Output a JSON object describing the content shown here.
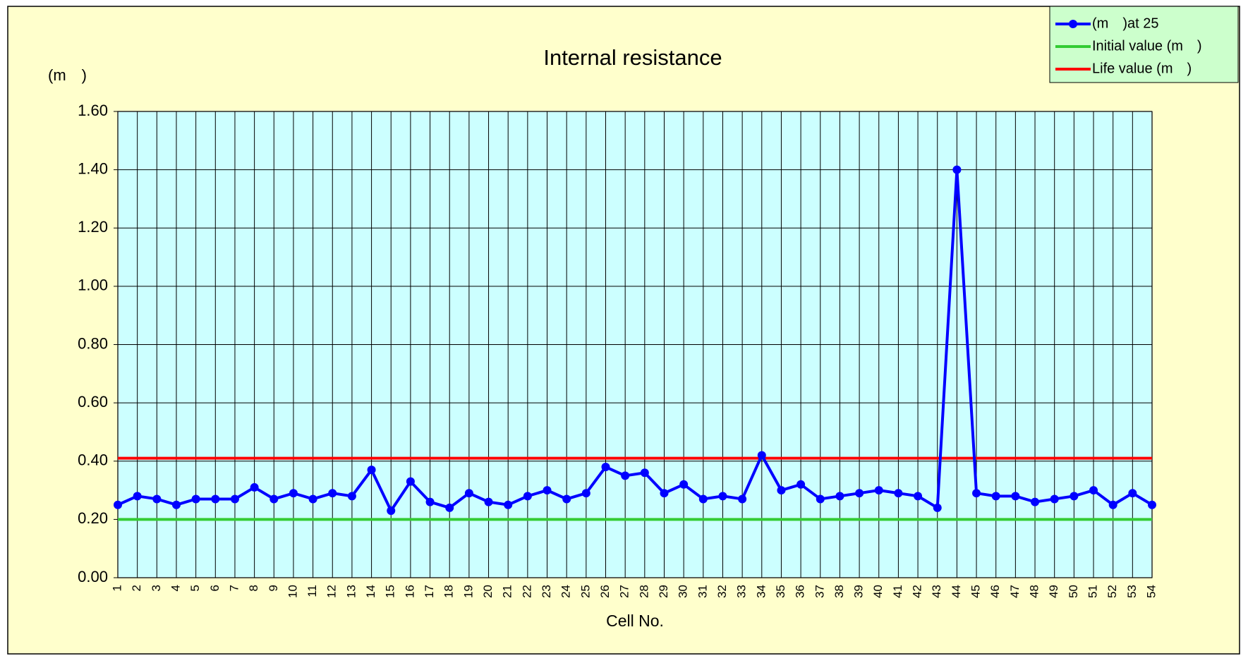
{
  "chart_data": {
    "type": "line",
    "title": "Internal resistance",
    "y_label": "(m　)",
    "x_label": "Cell No.",
    "categories": [
      "1",
      "2",
      "3",
      "4",
      "5",
      "6",
      "7",
      "8",
      "9",
      "10",
      "11",
      "12",
      "13",
      "14",
      "15",
      "16",
      "17",
      "18",
      "19",
      "20",
      "21",
      "22",
      "23",
      "24",
      "25",
      "26",
      "27",
      "28",
      "29",
      "30",
      "31",
      "32",
      "33",
      "34",
      "35",
      "36",
      "37",
      "38",
      "39",
      "40",
      "41",
      "42",
      "43",
      "44",
      "45",
      "46",
      "47",
      "48",
      "49",
      "50",
      "51",
      "52",
      "53",
      "54"
    ],
    "series": [
      {
        "name": "(m　)at 25",
        "color": "#0000ff",
        "marker": true,
        "values": [
          0.25,
          0.28,
          0.27,
          0.25,
          0.27,
          0.27,
          0.27,
          0.31,
          0.27,
          0.29,
          0.27,
          0.29,
          0.28,
          0.37,
          0.23,
          0.33,
          0.26,
          0.24,
          0.29,
          0.26,
          0.25,
          0.28,
          0.3,
          0.27,
          0.29,
          0.38,
          0.35,
          0.36,
          0.29,
          0.32,
          0.27,
          0.28,
          0.27,
          0.42,
          0.3,
          0.32,
          0.27,
          0.28,
          0.29,
          0.3,
          0.29,
          0.28,
          0.24,
          1.4,
          0.29,
          0.28,
          0.28,
          0.26,
          0.27,
          0.28,
          0.3,
          0.25,
          0.29,
          0.25
        ]
      },
      {
        "name": "Initial value (m　)",
        "color": "#33cc33",
        "marker": false,
        "values": [
          0.2,
          0.2,
          0.2,
          0.2,
          0.2,
          0.2,
          0.2,
          0.2,
          0.2,
          0.2,
          0.2,
          0.2,
          0.2,
          0.2,
          0.2,
          0.2,
          0.2,
          0.2,
          0.2,
          0.2,
          0.2,
          0.2,
          0.2,
          0.2,
          0.2,
          0.2,
          0.2,
          0.2,
          0.2,
          0.2,
          0.2,
          0.2,
          0.2,
          0.2,
          0.2,
          0.2,
          0.2,
          0.2,
          0.2,
          0.2,
          0.2,
          0.2,
          0.2,
          0.2,
          0.2,
          0.2,
          0.2,
          0.2,
          0.2,
          0.2,
          0.2,
          0.2,
          0.2,
          0.2
        ]
      },
      {
        "name": "Life value (m　)",
        "color": "#ff0000",
        "marker": false,
        "values": [
          0.41,
          0.41,
          0.41,
          0.41,
          0.41,
          0.41,
          0.41,
          0.41,
          0.41,
          0.41,
          0.41,
          0.41,
          0.41,
          0.41,
          0.41,
          0.41,
          0.41,
          0.41,
          0.41,
          0.41,
          0.41,
          0.41,
          0.41,
          0.41,
          0.41,
          0.41,
          0.41,
          0.41,
          0.41,
          0.41,
          0.41,
          0.41,
          0.41,
          0.41,
          0.41,
          0.41,
          0.41,
          0.41,
          0.41,
          0.41,
          0.41,
          0.41,
          0.41,
          0.41,
          0.41,
          0.41,
          0.41,
          0.41,
          0.41,
          0.41,
          0.41,
          0.41,
          0.41,
          0.41
        ]
      }
    ],
    "ylim": [
      0,
      1.6
    ],
    "yticks": [
      {
        "value": 0,
        "label": "0.00"
      },
      {
        "value": 0.2,
        "label": "0.20"
      },
      {
        "value": 0.4,
        "label": "0.40"
      },
      {
        "value": 0.6,
        "label": "0.60"
      },
      {
        "value": 0.8,
        "label": "0.80"
      },
      {
        "value": 1,
        "label": "1.00"
      },
      {
        "value": 1.2,
        "label": "1.20"
      },
      {
        "value": 1.4,
        "label": "1.40"
      },
      {
        "value": 1.6,
        "label": "1.60"
      }
    ],
    "grid": true,
    "legend": "top-right",
    "background": "#ffffcc",
    "plot_background": "#ccffff",
    "legend_background": "#ccffcc"
  }
}
